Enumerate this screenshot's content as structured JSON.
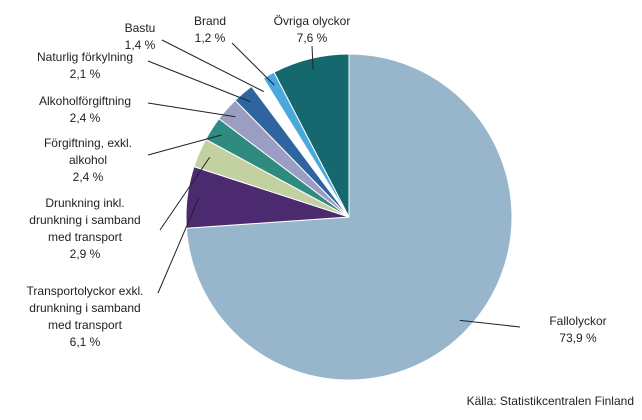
{
  "chart_data": {
    "type": "pie",
    "categories": [
      "Fallolyckor",
      "Transportolyckor exkl.\ndrunkning i samband\nmed transport",
      "Drunkning inkl.\ndrunkning i samband\nmed transport",
      "Förgiftning, exkl.\nalkohol",
      "Alkoholförgiftning",
      "Naturlig förkylning",
      "Bastu",
      "Brand",
      "Övriga olyckor"
    ],
    "values": [
      73.9,
      6.1,
      2.9,
      2.4,
      2.4,
      2.1,
      1.4,
      1.2,
      7.6
    ],
    "value_labels": [
      "73,9 %",
      "6,1 %",
      "2,9 %",
      "2,4 %",
      "2,4 %",
      "2,1 %",
      "1,4 %",
      "1,2 %",
      "7,6 %"
    ],
    "colors": [
      "#97b6cc",
      "#4b2a6f",
      "#c3d0a0",
      "#2f8b7f",
      "#9b9dc3",
      "#2e64a0",
      "#ffffff",
      "#4aa8dc",
      "#15686e"
    ],
    "source": "Källa: Statistikcentralen Finland"
  }
}
